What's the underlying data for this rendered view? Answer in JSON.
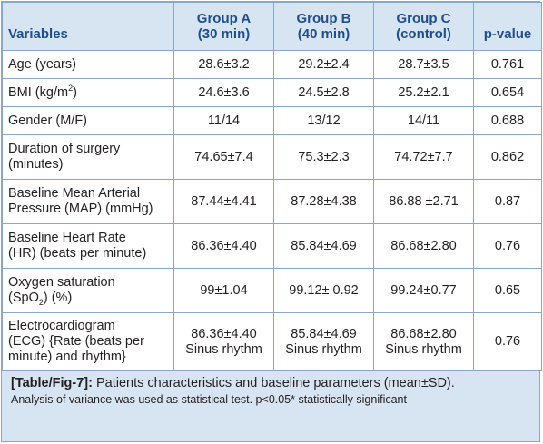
{
  "table": {
    "headers": {
      "variables": "Variables",
      "group_a_line1": "Group A",
      "group_a_line2": "(30 min)",
      "group_b_line1": "Group B",
      "group_b_line2": "(40 min)",
      "group_c_line1": "Group C",
      "group_c_line2": "(control)",
      "p_value": "p-value"
    },
    "rows": [
      {
        "var": "Age (years)",
        "a": "28.6±3.2",
        "b": "29.2±2.4",
        "c": "28.7±3.5",
        "p": "0.761"
      },
      {
        "var_pre": "BMI (kg/m",
        "var_sup": "2",
        "var_post": ")",
        "a": "24.6±3.6",
        "b": "24.5±2.8",
        "c": "25.2±2.1",
        "p": "0.654"
      },
      {
        "var": "Gender (M/F)",
        "a": "11/14",
        "b": "13/12",
        "c": "14/11",
        "p": "0.688"
      },
      {
        "var_line1": "Duration of surgery",
        "var_line2": "(minutes)",
        "a": "74.65±7.4",
        "b": "75.3±2.3",
        "c": "74.72±7.7",
        "p": "0.862"
      },
      {
        "var_line1": "Baseline Mean Arterial",
        "var_line2": "Pressure (MAP) (mmHg)",
        "a": "87.44±4.41",
        "b": "87.28±4.38",
        "c": "86.88 ±2.71",
        "p": "0.87"
      },
      {
        "var_line1": "Baseline Heart Rate",
        "var_line2": "(HR) (beats per minute)",
        "a": "86.36±4.40",
        "b": "85.84±4.69",
        "c": "86.68±2.80",
        "p": "0.76"
      },
      {
        "var_line1": "Oxygen saturation",
        "var_line2_pre": "(SpO",
        "var_line2_sub": "2",
        "var_line2_post": ") (%)",
        "a": "99±1.04",
        "b": "99.12± 0.92",
        "c": "99.24±0.77",
        "p": "0.65"
      },
      {
        "var_line1": "Electrocardiogram",
        "var_line2": "(ECG) {Rate (beats per",
        "var_line3": "minute) and rhythm}",
        "a_line1": "86.36±4.40",
        "a_line2": "Sinus rhythm",
        "b_line1": "85.84±4.69",
        "b_line2": "Sinus rhythm",
        "c_line1": "86.68±2.80",
        "c_line2": "Sinus rhythm",
        "p": "0.76"
      }
    ]
  },
  "caption": {
    "label": "[Table/Fig-7]:",
    "text": " Patients characteristics and baseline parameters (mean±SD).",
    "note": "Analysis of variance was used as statistical test. p<0.05* statistically significant"
  },
  "colors": {
    "header_text": "#1f4e8c",
    "header_bg": "#d7e4f2",
    "border": "#8aa7c8"
  }
}
